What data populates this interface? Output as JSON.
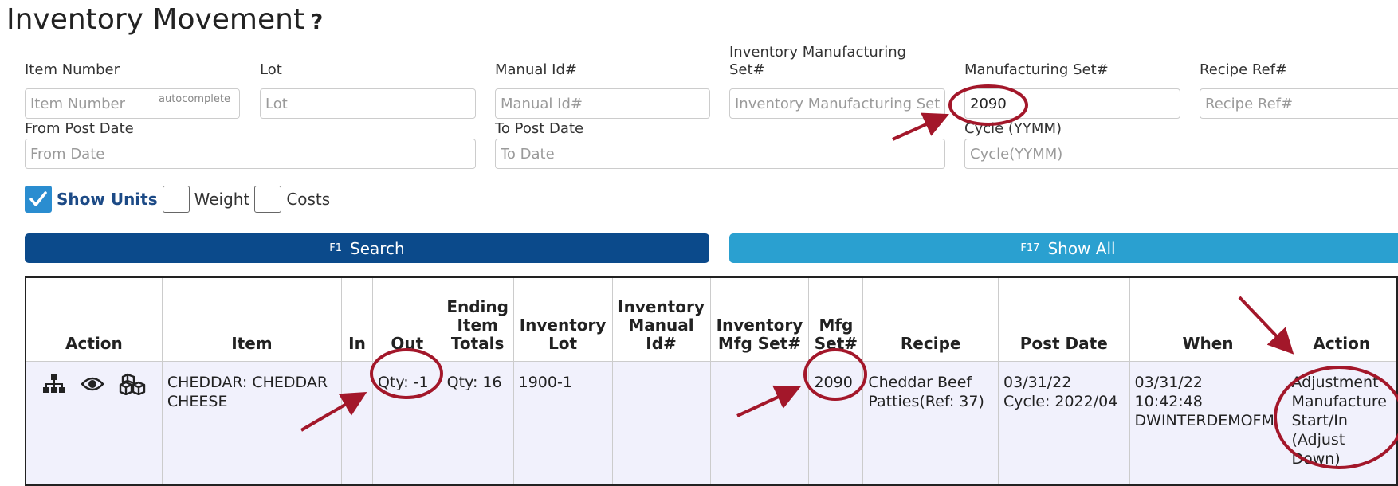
{
  "page": {
    "title": "Inventory Movement",
    "help_glyph": "?"
  },
  "filters": {
    "item_number": {
      "label": "Item Number",
      "placeholder": "Item Number",
      "hint": "autocomplete",
      "value": ""
    },
    "lot": {
      "label": "Lot",
      "placeholder": "Lot",
      "value": ""
    },
    "manual_id": {
      "label": "Manual Id#",
      "placeholder": "Manual Id#",
      "value": ""
    },
    "inv_mfg_set": {
      "label_line1": "Inventory Manufacturing",
      "label_line2": "Set#",
      "placeholder": "Inventory Manufacturing Set#",
      "value": ""
    },
    "mfg_set": {
      "label": "Manufacturing Set#",
      "placeholder": "Manufacturing Set#",
      "value": "2090"
    },
    "recipe_ref": {
      "label": "Recipe Ref#",
      "placeholder": "Recipe Ref#",
      "value": ""
    },
    "from_post_date": {
      "label": "From Post Date",
      "placeholder": "From Date",
      "value": ""
    },
    "to_post_date": {
      "label": "To Post Date",
      "placeholder": "To Date",
      "value": ""
    },
    "cycle": {
      "label": "Cycle (YYMM)",
      "placeholder": "Cycle(YYMM)",
      "value": ""
    }
  },
  "options": {
    "show_units": {
      "label": "Show Units",
      "checked": true
    },
    "weight": {
      "label": "Weight",
      "checked": false
    },
    "costs": {
      "label": "Costs",
      "checked": false
    }
  },
  "buttons": {
    "search": {
      "key": "F1",
      "label": "Search"
    },
    "show_all": {
      "key": "F17",
      "label": "Show All"
    }
  },
  "table": {
    "headers": {
      "action": "Action",
      "item": "Item",
      "in": "In",
      "out": "Out",
      "ending_totals": [
        "Ending",
        "Item",
        "Totals"
      ],
      "inventory_lot": [
        "Inventory",
        "Lot"
      ],
      "inventory_manual_id": [
        "Inventory",
        "Manual",
        "Id#"
      ],
      "inventory_mfg_set": [
        "Inventory",
        "Mfg Set#"
      ],
      "mfg_set": [
        "Mfg",
        "Set#"
      ],
      "recipe": "Recipe",
      "post_date": "Post Date",
      "when": "When",
      "action2": "Action"
    },
    "rows": [
      {
        "action_icons": [
          "hierarchy-icon",
          "eye-icon",
          "cubes-icon"
        ],
        "item": [
          "CHEDDAR: CHEDDAR",
          "CHEESE"
        ],
        "in": "",
        "out": "Qty: -1",
        "ending_totals": "Qty: 16",
        "inventory_lot": "1900-1",
        "inventory_manual_id": "",
        "inventory_mfg_set": "",
        "mfg_set": "2090",
        "recipe": [
          "Cheddar Beef",
          "Patties(Ref: 37)"
        ],
        "post_date": [
          "03/31/22",
          "Cycle: 2022/04"
        ],
        "when": [
          "03/31/22",
          "10:42:48",
          "DWINTERDEMOFM"
        ],
        "action2": [
          "Adjustment",
          "Manufacture",
          "Start/In",
          "(Adjust",
          "Down)"
        ]
      }
    ]
  },
  "colors": {
    "search_button": "#0b4a8b",
    "show_all_button": "#2aa0d0",
    "checkbox_checked": "#2a8dd0",
    "annotation": "#a3172a",
    "row_background": "#f1f1fc"
  }
}
